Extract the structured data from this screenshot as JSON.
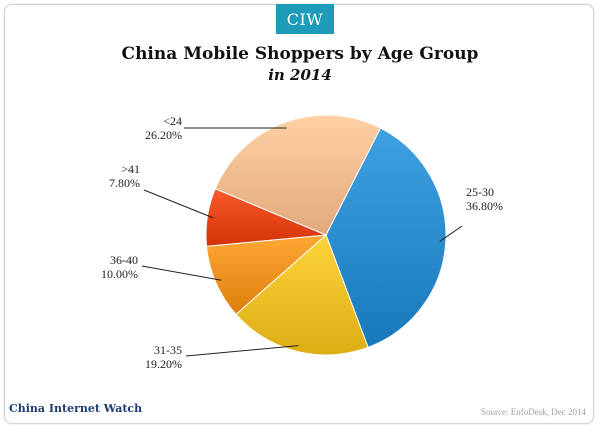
{
  "header": {
    "badge": "CIW"
  },
  "chart_data": {
    "type": "pie",
    "title": "China Mobile Shoppers by Age Group",
    "subtitle": "in 2014",
    "slices": [
      {
        "category": "25-30",
        "value": 36.8,
        "label": "36.80%",
        "color": "#2d8fd0"
      },
      {
        "category": "31-35",
        "value": 19.2,
        "label": "19.20%",
        "color": "#f2c229"
      },
      {
        "category": "36-40",
        "value": 10.0,
        "label": "10.00%",
        "color": "#f39522"
      },
      {
        "category": ">41",
        "value": 7.8,
        "label": "7.80%",
        "color": "#e8481c"
      },
      {
        "category": "<24",
        "value": 26.2,
        "label": "26.20%",
        "color": "#f7bf93"
      }
    ],
    "start_angle_deg": 27
  },
  "footer": {
    "brand": "China Internet Watch",
    "source": "Source: EnfoDesk, Dec 2014"
  }
}
